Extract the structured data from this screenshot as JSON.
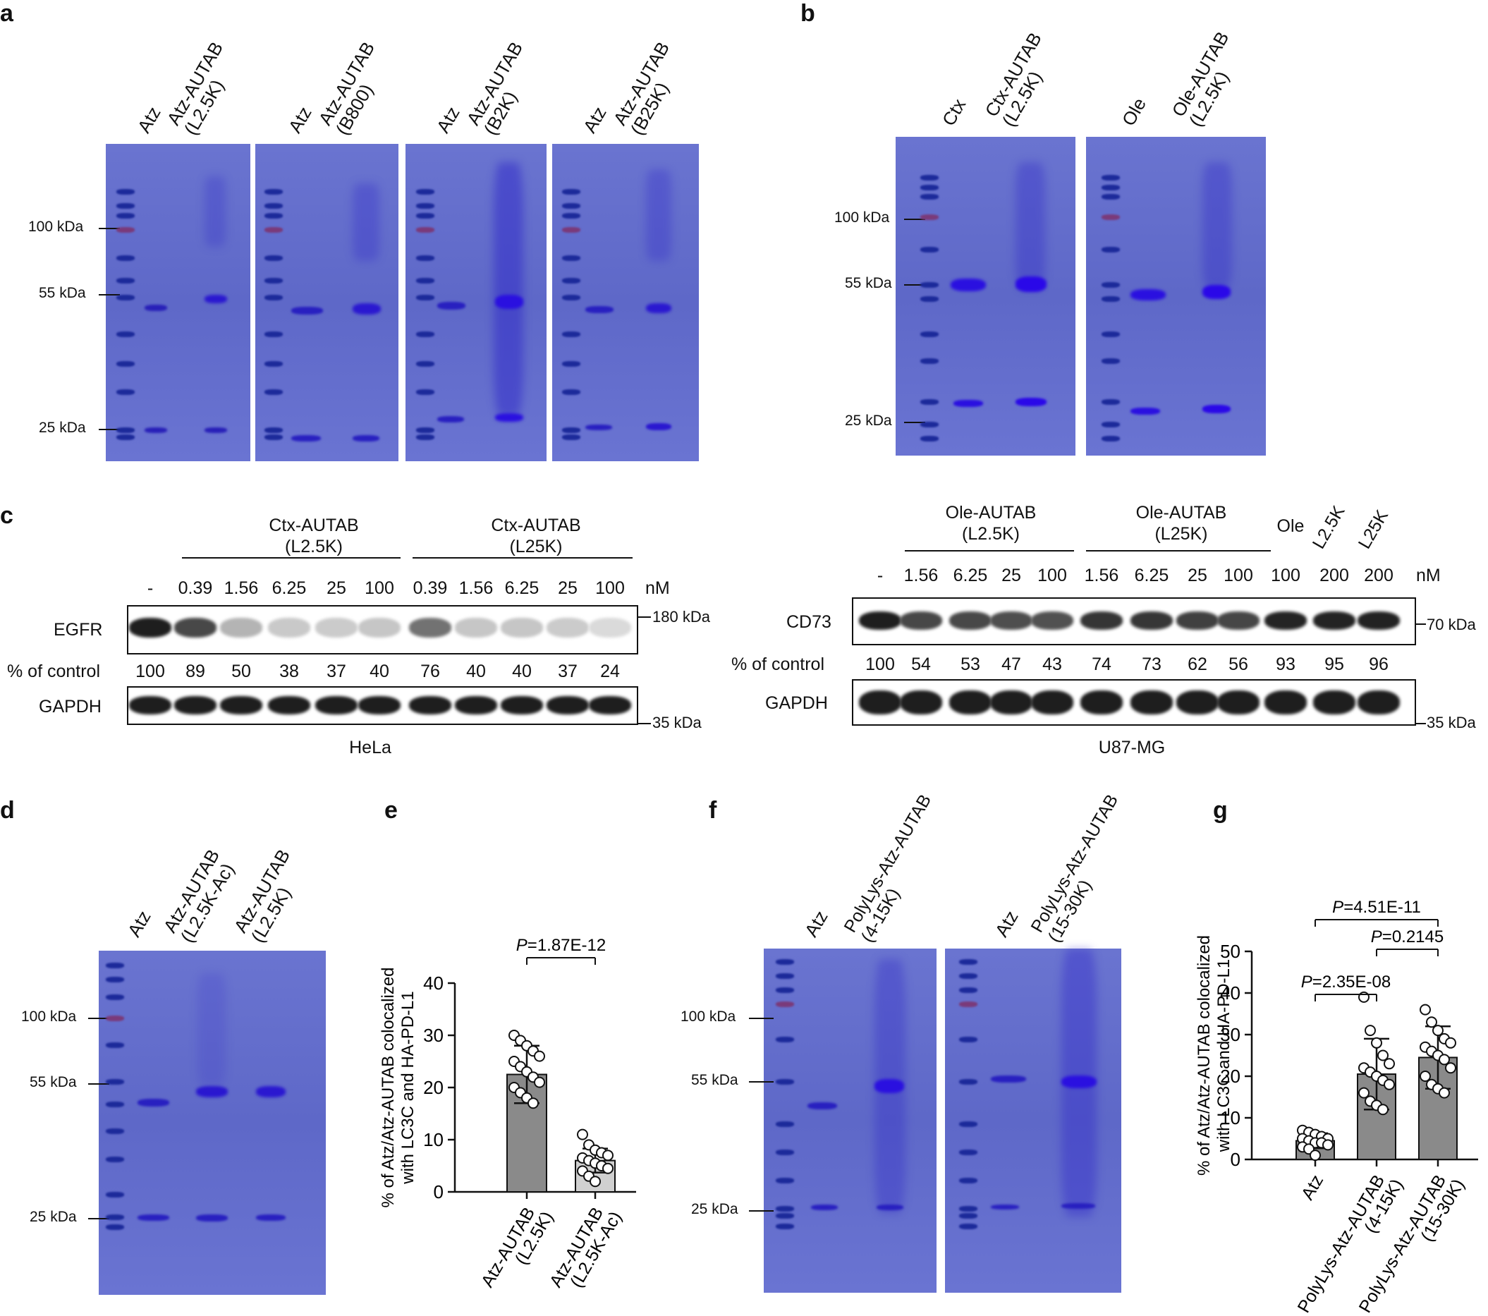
{
  "panels": {
    "a": "a",
    "b": "b",
    "c": "c",
    "d": "d",
    "e": "e",
    "f": "f",
    "g": "g"
  },
  "panel_a": {
    "lanes": [
      "Atz",
      "Atz-AUTAB\n(L2.5K)",
      "Atz",
      "Atz-AUTAB\n(B800)",
      "Atz",
      "Atz-AUTAB\n(B2K)",
      "Atz",
      "Atz-AUTAB\n(B25K)"
    ],
    "markers": [
      "100 kDa",
      "55 kDa",
      "25 kDa"
    ]
  },
  "panel_b": {
    "lanes": [
      "Ctx",
      "Ctx-AUTAB\n(L2.5K)",
      "Ole",
      "Ole-AUTAB\n(L2.5K)"
    ],
    "markers": [
      "100 kDa",
      "55 kDa",
      "25 kDa"
    ]
  },
  "panel_c_left": {
    "group1": "Ctx-AUTAB\n(L2.5K)",
    "group2": "Ctx-AUTAB\n(L25K)",
    "conc": [
      "-",
      "0.39",
      "1.56",
      "6.25",
      "25",
      "100",
      "0.39",
      "1.56",
      "6.25",
      "25",
      "100"
    ],
    "unit": "nM",
    "row1": "EGFR",
    "row2": "GAPDH",
    "pct_label": "% of control",
    "pct": [
      "100",
      "89",
      "50",
      "38",
      "37",
      "40",
      "76",
      "40",
      "40",
      "37",
      "24"
    ],
    "mw_top": "180 kDa",
    "mw_bottom": "35 kDa",
    "cell_line": "HeLa"
  },
  "panel_c_right": {
    "group1": "Ole-AUTAB\n(L2.5K)",
    "group2": "Ole-AUTAB\n(L25K)",
    "extra": [
      "Ole",
      "L2.5K",
      "L25K"
    ],
    "conc": [
      "-",
      "1.56",
      "6.25",
      "25",
      "100",
      "1.56",
      "6.25",
      "25",
      "100",
      "100",
      "200",
      "200"
    ],
    "unit": "nM",
    "row1": "CD73",
    "row2": "GAPDH",
    "pct_label": "% of control",
    "pct": [
      "100",
      "54",
      "53",
      "47",
      "43",
      "74",
      "73",
      "62",
      "56",
      "93",
      "95",
      "96"
    ],
    "mw_top": "70 kDa",
    "mw_bottom": "35 kDa",
    "cell_line": "U87-MG"
  },
  "panel_d": {
    "lanes": [
      "Atz",
      "Atz-AUTAB\n(L2.5K-Ac)",
      "Atz-AUTAB\n(L2.5K)"
    ],
    "markers": [
      "100 kDa",
      "55 kDa",
      "25 kDa"
    ]
  },
  "panel_f": {
    "lanes": [
      "Atz",
      "PolyLys-Atz-AUTAB\n(4-15K)",
      "Atz",
      "PolyLys-Atz-AUTAB\n(15-30K)"
    ],
    "markers": [
      "100 kDa",
      "55 kDa",
      "25 kDa"
    ]
  },
  "chart_data": [
    {
      "type": "bar",
      "panel": "e",
      "categories": [
        "Atz-AUTAB\n(L2.5K)",
        "Atz-AUTAB\n(L2.5K-Ac)"
      ],
      "values": [
        22.5,
        6.0
      ],
      "errors": [
        5.5,
        2.3
      ],
      "points": [
        [
          30,
          29,
          28,
          27,
          26,
          25,
          24,
          23,
          22,
          21,
          20,
          19,
          18,
          17
        ],
        [
          11,
          9,
          8,
          7.5,
          7,
          6.5,
          6,
          5.5,
          5,
          4.5,
          4,
          3,
          2
        ]
      ],
      "ylabel": "% of Atz/Atz-AUTAB colocalized\nwith LC3C and HA-PD-L1",
      "ylim": [
        0,
        40
      ],
      "yticks": [
        0,
        10,
        20,
        30,
        40
      ],
      "annotations": [
        {
          "text": "P=1.87E-12",
          "between": [
            0,
            1
          ]
        }
      ]
    },
    {
      "type": "bar",
      "panel": "g",
      "categories": [
        "Atz",
        "PolyLys-Atz-AUTAB\n(4-15K)",
        "PolyLys-Atz-AUTAB\n(15-30K)"
      ],
      "values": [
        4.5,
        20.5,
        24.5
      ],
      "errors": [
        1.8,
        8.5,
        7.5
      ],
      "points": [
        [
          7,
          6.5,
          6,
          5.5,
          5,
          5,
          4.5,
          4,
          4,
          3.5,
          3,
          2.5,
          1
        ],
        [
          39,
          31,
          28,
          25,
          23,
          22,
          21,
          20,
          19,
          18,
          16,
          14,
          13,
          12
        ],
        [
          36,
          33,
          31,
          29,
          28,
          27,
          26,
          25,
          24,
          22,
          20,
          18,
          17,
          16
        ]
      ],
      "ylabel": "% of Atz/Atz-AUTAB colocalized\nwith LC3C and HA-PD-L1",
      "ylim": [
        0,
        50
      ],
      "yticks": [
        0,
        10,
        20,
        30,
        40,
        50
      ],
      "annotations": [
        {
          "text": "P=4.51E-11",
          "between": [
            0,
            2
          ]
        },
        {
          "text": "P=0.2145",
          "between": [
            1,
            2
          ]
        },
        {
          "text": "P=2.35E-08",
          "between": [
            0,
            1
          ]
        }
      ]
    }
  ]
}
